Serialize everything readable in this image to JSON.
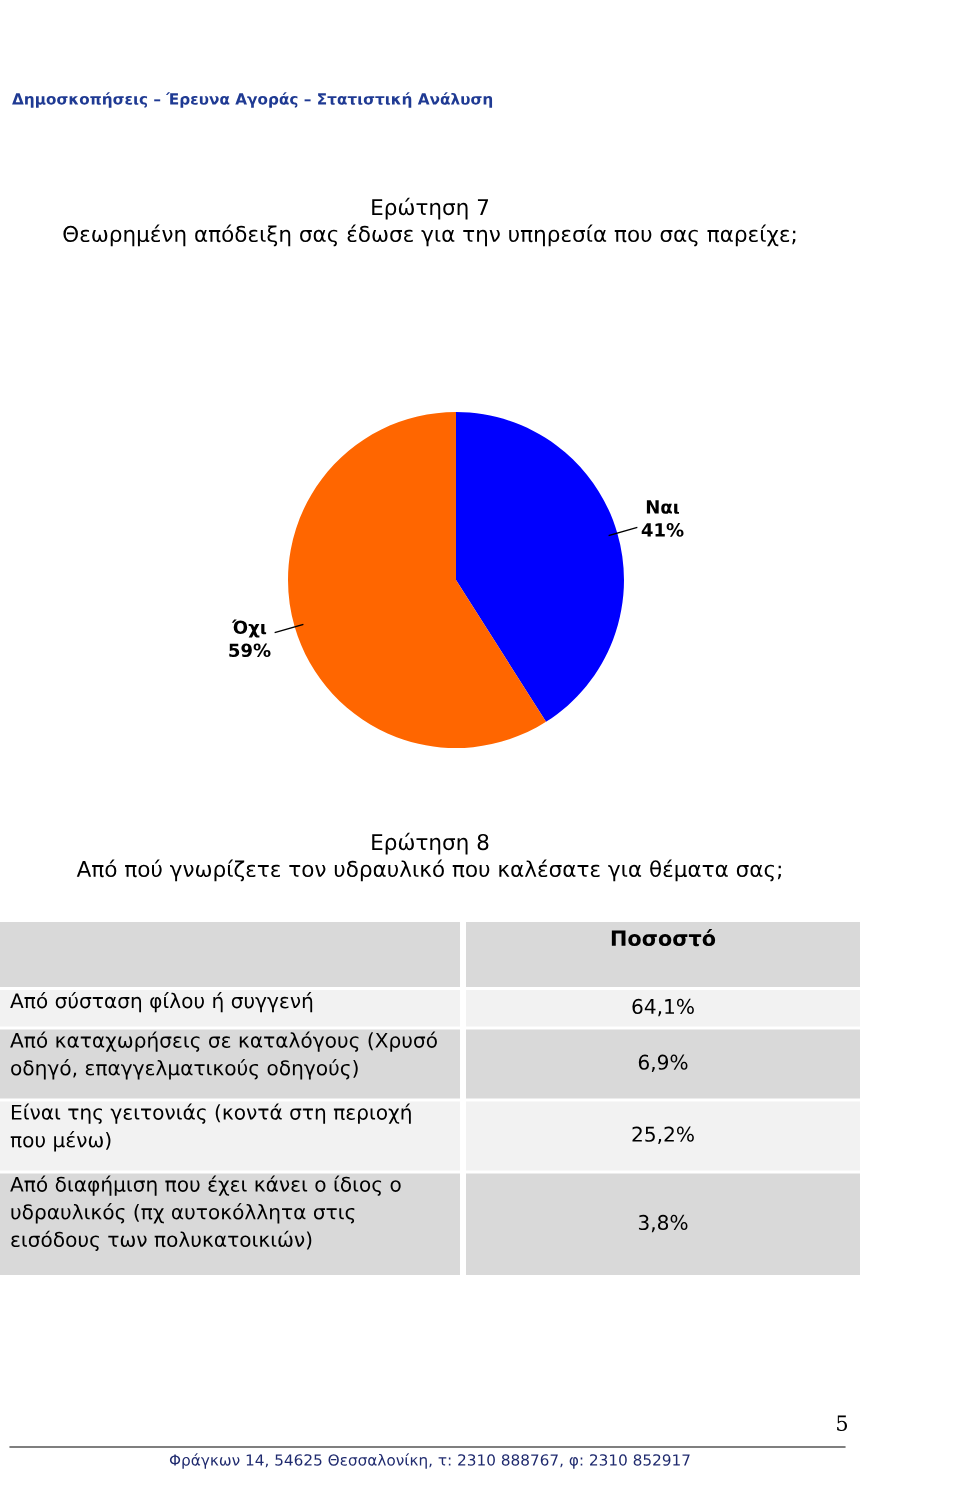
{
  "chart_data": [
    {
      "type": "pie",
      "title": "Ερώτηση 7\nΘεωρημένη απόδειξη σας έδωσε για την υπηρεσία που σας παρείχε;",
      "categories": [
        "Ναι",
        "Όχι"
      ],
      "values": [
        41,
        59
      ],
      "colors": [
        "#0000ff",
        "#ff6600"
      ],
      "value_labels": [
        "41%",
        "59%"
      ],
      "annotations": [
        "Δημοσκοπήσεις – Έρευνα Αγοράς – Στατιστική Ανάλυση"
      ]
    },
    {
      "type": "other",
      "title": "Ερώτηση 8\nΑπό πού γνωρίζετε τον υδραυλικό που καλέσατε για θέματα σας;",
      "ylabel": "Ποσοστό",
      "categories": [
        "Από σύσταση φίλου ή συγγενή",
        "Από καταχωρήσεις σε καταλόγους (Χρυσό οδηγό, επαγγελματικούς οδηγούς)",
        "Είναι της γειτονιάς (κοντά στη περιοχή που μένω)",
        "Από διαφήμιση που έχει κάνει ο ίδιος ο υδραυλικός (πχ αυτοκόλλητα στις εισόδους των πολυκατοικιών)"
      ],
      "value_labels": [
        "64,1%",
        "6,9%",
        "25,2%",
        "3,8%"
      ],
      "annotations": [
        "5",
        "Φράγκων 14, 54625 Θεσσαλονίκη, τ: 2310 888767, φ: 2310 852917"
      ]
    }
  ]
}
